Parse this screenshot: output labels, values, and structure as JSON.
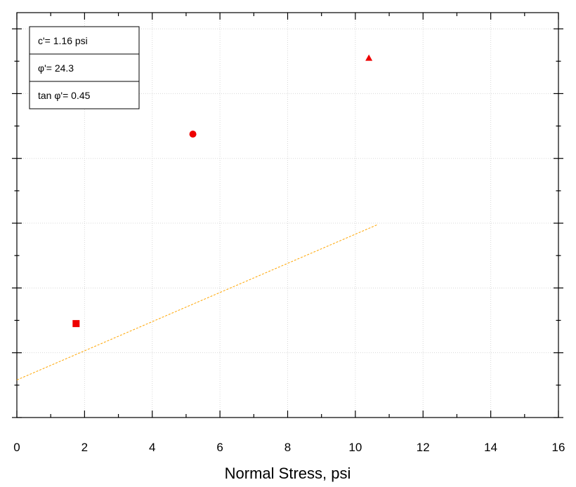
{
  "chart_data": {
    "type": "scatter",
    "title": "",
    "xlabel": "Normal Stress, psi",
    "ylabel": "",
    "xlim": [
      0,
      16
    ],
    "ylim": [
      0,
      12.5
    ],
    "x_ticks": [
      "0",
      "2",
      "4",
      "6",
      "8",
      "10",
      "12",
      "14",
      "16"
    ],
    "grid": true,
    "points": [
      {
        "x": 1.75,
        "y": 2.9,
        "marker": "square"
      },
      {
        "x": 5.2,
        "y": 8.75,
        "marker": "circle"
      },
      {
        "x": 10.4,
        "y": 11.1,
        "marker": "triangle"
      }
    ],
    "fit_line": {
      "intercept": 1.16,
      "slope": 0.45,
      "x_range": [
        0,
        10.65
      ]
    },
    "colors": {
      "points": "#ee0000",
      "fit_line": "#ffa500",
      "grid": "#d8d8d8"
    },
    "legend_placement": "top-left",
    "legend": [
      "c'= 1.16 psi",
      "φ'= 24.3",
      "tan φ'= 0.45"
    ]
  }
}
